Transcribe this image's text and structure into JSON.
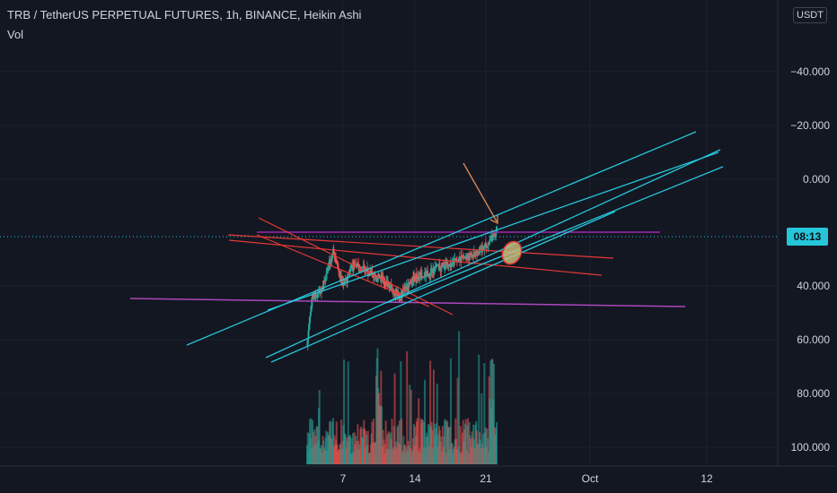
{
  "header": {
    "title": "TRB / TetherUS PERPETUAL FUTURES, 1h, BINANCE, Heikin Ashi",
    "indicator": "Vol",
    "currency": "USDT"
  },
  "price_tag": "08:13",
  "colors": {
    "background": "#131722",
    "cyan": "#26c6da",
    "red": "#e53935",
    "purple": "#9c27b0",
    "magenta": "#ab47bc",
    "arrow": "#e08a5a",
    "green": "#26a69a",
    "bearish": "#ef5350"
  },
  "chart_data": {
    "type": "candlestick",
    "y_axis_ticks": [
      "−40.000",
      "−20.000",
      "0.000",
      "40.000",
      "60.000",
      "80.000",
      "100.000"
    ],
    "x_axis_ticks": [
      "7",
      "14",
      "21",
      "Oct",
      "12"
    ],
    "price_series": [
      {
        "day": 3.5,
        "price": 62
      },
      {
        "day": 4.0,
        "price": 44
      },
      {
        "day": 5.0,
        "price": 41
      },
      {
        "day": 6.0,
        "price": 27
      },
      {
        "day": 7.0,
        "price": 40
      },
      {
        "day": 8.0,
        "price": 32
      },
      {
        "day": 9.5,
        "price": 35
      },
      {
        "day": 11.0,
        "price": 38
      },
      {
        "day": 12.5,
        "price": 44
      },
      {
        "day": 14.0,
        "price": 37
      },
      {
        "day": 15.5,
        "price": 35
      },
      {
        "day": 17.0,
        "price": 32
      },
      {
        "day": 18.5,
        "price": 30
      },
      {
        "day": 20.0,
        "price": 28
      },
      {
        "day": 21.0,
        "price": 25
      },
      {
        "day": 22.0,
        "price": 19
      }
    ],
    "annotations": "cyan rising channel lines, red falling trendlines, purple horizontal levels, orange arrow, highlighted ellipse"
  }
}
